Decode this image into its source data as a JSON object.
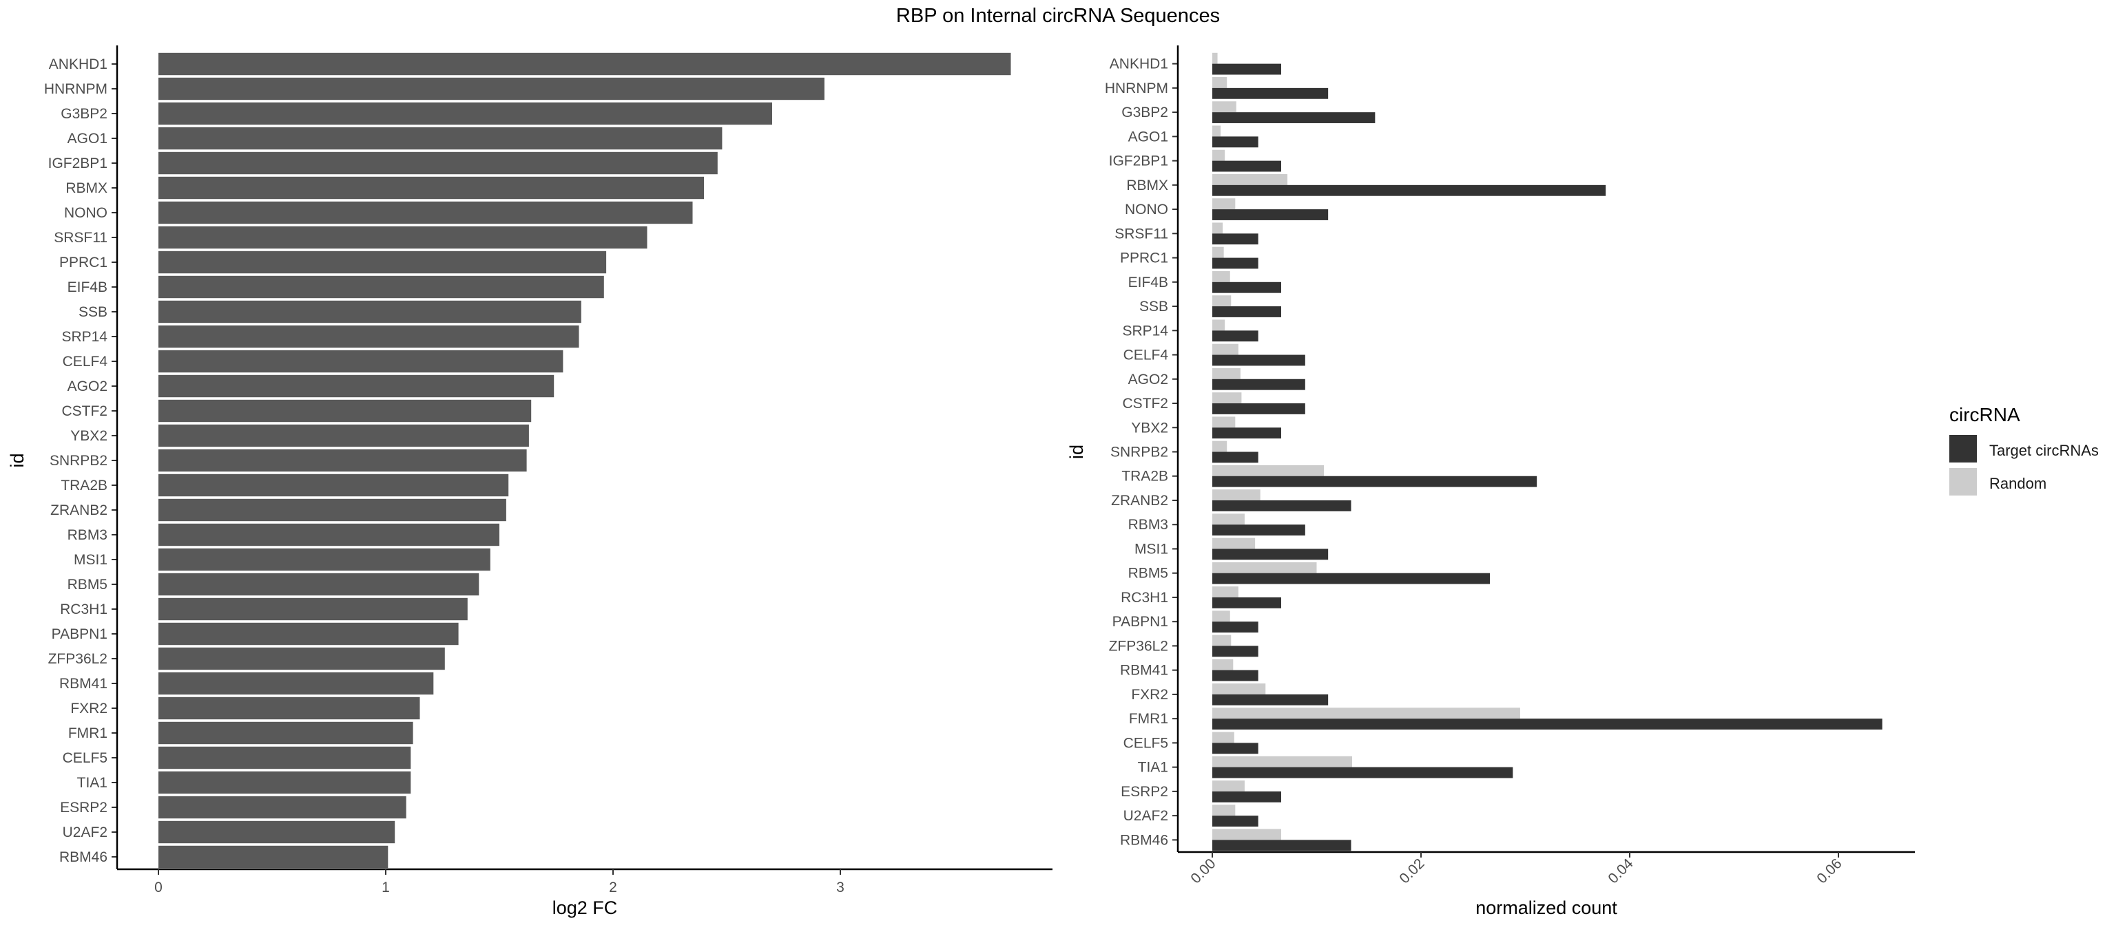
{
  "title": "RBP on Internal circRNA Sequences",
  "legend": {
    "title": "circRNA",
    "items": [
      {
        "label": "Target circRNAs",
        "color": "#333333"
      },
      {
        "label": "Random",
        "color": "#cccccc"
      }
    ]
  },
  "chart_data": [
    {
      "type": "bar",
      "orientation": "horizontal",
      "xlabel": "log2 FC",
      "ylabel": "id",
      "xlim": [
        0,
        3.75
      ],
      "xticks": [
        0,
        1,
        2,
        3
      ],
      "grid": false,
      "bar_color": "#595959",
      "categories": [
        "ANKHD1",
        "HNRNPM",
        "G3BP2",
        "AGO1",
        "IGF2BP1",
        "RBMX",
        "NONO",
        "SRSF11",
        "PPRC1",
        "EIF4B",
        "SSB",
        "SRP14",
        "CELF4",
        "AGO2",
        "CSTF2",
        "YBX2",
        "SNRPB2",
        "TRA2B",
        "ZRANB2",
        "RBM3",
        "MSI1",
        "RBM5",
        "RC3H1",
        "PABPN1",
        "ZFP36L2",
        "RBM41",
        "FXR2",
        "FMR1",
        "CELF5",
        "TIA1",
        "ESRP2",
        "U2AF2",
        "RBM46"
      ],
      "values": [
        3.75,
        2.93,
        2.7,
        2.48,
        2.46,
        2.4,
        2.35,
        2.15,
        1.97,
        1.96,
        1.86,
        1.85,
        1.78,
        1.74,
        1.64,
        1.63,
        1.62,
        1.54,
        1.53,
        1.5,
        1.46,
        1.41,
        1.36,
        1.32,
        1.26,
        1.21,
        1.15,
        1.12,
        1.11,
        1.11,
        1.09,
        1.04,
        1.01
      ]
    },
    {
      "type": "bar",
      "orientation": "horizontal",
      "grouped": true,
      "xlabel": "normalized count",
      "ylabel": "id",
      "xlim": [
        0,
        0.067
      ],
      "xticks": [
        0.0,
        0.02,
        0.04,
        0.06
      ],
      "xtick_labels": [
        "0.00",
        "0.02",
        "0.04",
        "0.06"
      ],
      "grid": false,
      "legend_position": "right",
      "categories": [
        "ANKHD1",
        "HNRNPM",
        "G3BP2",
        "AGO1",
        "IGF2BP1",
        "RBMX",
        "NONO",
        "SRSF11",
        "PPRC1",
        "EIF4B",
        "SSB",
        "SRP14",
        "CELF4",
        "AGO2",
        "CSTF2",
        "YBX2",
        "SNRPB2",
        "TRA2B",
        "ZRANB2",
        "RBM3",
        "MSI1",
        "RBM5",
        "RC3H1",
        "PABPN1",
        "ZFP36L2",
        "RBM41",
        "FXR2",
        "FMR1",
        "CELF5",
        "TIA1",
        "ESRP2",
        "U2AF2",
        "RBM46"
      ],
      "series": [
        {
          "name": "Target circRNAs",
          "color": "#333333",
          "values": [
            0.0066,
            0.0111,
            0.0156,
            0.0044,
            0.0066,
            0.0377,
            0.0111,
            0.0044,
            0.0044,
            0.0066,
            0.0066,
            0.0044,
            0.0089,
            0.0089,
            0.0089,
            0.0066,
            0.0044,
            0.0311,
            0.0133,
            0.0089,
            0.0111,
            0.0266,
            0.0066,
            0.0044,
            0.0044,
            0.0044,
            0.0111,
            0.0642,
            0.0044,
            0.0288,
            0.0066,
            0.0044,
            0.0133
          ]
        },
        {
          "name": "Random",
          "color": "#cccccc",
          "values": [
            0.0005,
            0.0014,
            0.0023,
            0.0008,
            0.0012,
            0.0072,
            0.0022,
            0.001,
            0.0011,
            0.0017,
            0.0018,
            0.0012,
            0.0025,
            0.0027,
            0.0028,
            0.0022,
            0.0014,
            0.0107,
            0.0046,
            0.0031,
            0.0041,
            0.01,
            0.0025,
            0.0017,
            0.0018,
            0.002,
            0.0051,
            0.0295,
            0.0021,
            0.0134,
            0.0031,
            0.0022,
            0.0066
          ]
        }
      ]
    }
  ]
}
